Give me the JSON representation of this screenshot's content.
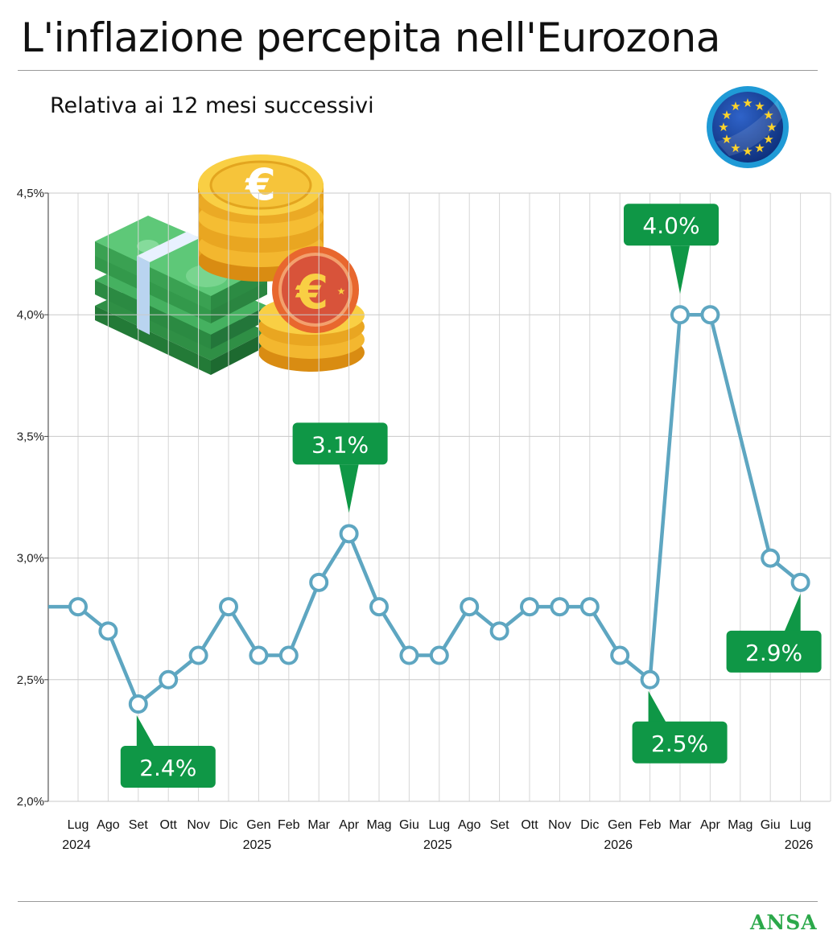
{
  "header": {
    "title": "L'inflazione percepita nell'Eurozona",
    "subtitle": "Relativa ai 12 mesi successivi"
  },
  "footer": {
    "brand": "ANSA"
  },
  "icons": {
    "region": "eu-flag-icon",
    "illustration": "money-icon"
  },
  "colors": {
    "line": "#5ea6c1",
    "callout": "#0f9746",
    "brand": "#2ba84a"
  },
  "chart_data": {
    "type": "line",
    "title": "L'inflazione percepita nell'Eurozona",
    "subtitle": "Relativa ai 12 mesi successivi",
    "ylim": [
      2.0,
      4.5
    ],
    "yticks": [
      {
        "value": 4.5,
        "label": "4,5%"
      },
      {
        "value": 4.0,
        "label": "4,0%"
      },
      {
        "value": 3.5,
        "label": "3,5%"
      },
      {
        "value": 3.0,
        "label": "3,0%"
      },
      {
        "value": 2.5,
        "label": "2,5%"
      },
      {
        "value": 2.0,
        "label": "2,0%"
      }
    ],
    "grid": true,
    "categories": [
      {
        "month": "Lug",
        "year": "2024"
      },
      {
        "month": "Ago",
        "year": ""
      },
      {
        "month": "Set",
        "year": ""
      },
      {
        "month": "Ott",
        "year": ""
      },
      {
        "month": "Nov",
        "year": ""
      },
      {
        "month": "Dic",
        "year": ""
      },
      {
        "month": "Gen",
        "year": "2025"
      },
      {
        "month": "Feb",
        "year": ""
      },
      {
        "month": "Mar",
        "year": ""
      },
      {
        "month": "Apr",
        "year": ""
      },
      {
        "month": "Mag",
        "year": ""
      },
      {
        "month": "Giu",
        "year": ""
      },
      {
        "month": "Lug",
        "year": "2025"
      },
      {
        "month": "Ago",
        "year": ""
      },
      {
        "month": "Set",
        "year": ""
      },
      {
        "month": "Ott",
        "year": ""
      },
      {
        "month": "Nov",
        "year": ""
      },
      {
        "month": "Dic",
        "year": ""
      },
      {
        "month": "Gen",
        "year": "2026"
      },
      {
        "month": "Feb",
        "year": ""
      },
      {
        "month": "Mar",
        "year": ""
      },
      {
        "month": "Apr",
        "year": ""
      },
      {
        "month": "Mag",
        "year": ""
      },
      {
        "month": "Giu",
        "year": ""
      },
      {
        "month": "Lug",
        "year": "2026"
      }
    ],
    "series": [
      {
        "start_value": 2.8,
        "values": [
          2.8,
          2.7,
          2.4,
          2.5,
          2.6,
          2.8,
          2.6,
          2.6,
          2.9,
          3.1,
          2.8,
          2.6,
          2.6,
          2.8,
          2.7,
          2.8,
          2.8,
          2.8,
          2.6,
          2.5,
          4.0,
          4.0,
          null,
          3.0,
          2.9
        ]
      }
    ],
    "annotations": [
      {
        "index": 2,
        "label": "2.4%",
        "placement": "below"
      },
      {
        "index": 9,
        "label": "3.1%",
        "placement": "above"
      },
      {
        "index": 19,
        "label": "2.5%",
        "placement": "below"
      },
      {
        "index": 20,
        "label": "4.0%",
        "placement": "above"
      },
      {
        "index": 24,
        "label": "2.9%",
        "placement": "below-left"
      }
    ]
  }
}
